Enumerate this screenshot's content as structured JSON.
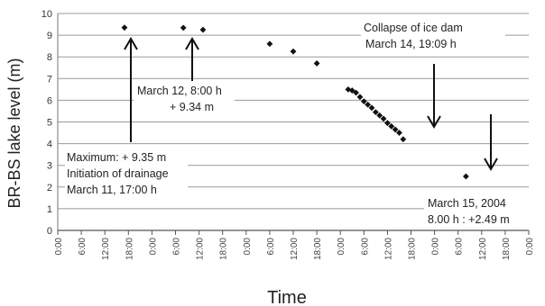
{
  "chart_data": {
    "type": "scatter",
    "title": "",
    "xlabel": "Time",
    "ylabel": "BR-BS lake level (m)",
    "ylim": [
      0,
      10
    ],
    "yticks": [
      "0",
      "1",
      "2",
      "3",
      "4",
      "5",
      "6",
      "7",
      "8",
      "9",
      "10"
    ],
    "xlim_hours": [
      0,
      120
    ],
    "xtick_labels": [
      "0:00",
      "6:00",
      "12:00",
      "18:00",
      "0:00",
      "6:00",
      "12:00",
      "18:00",
      "0:00",
      "6:00",
      "12:00",
      "18:00",
      "0:00",
      "6:00",
      "12:00",
      "18:00",
      "0:00",
      "6:00",
      "12:00",
      "18:00",
      "0:00"
    ],
    "grid": true,
    "series": [
      {
        "color": "#111111",
        "points": [
          {
            "x": "March 11, 17:00",
            "y": 9.35
          },
          {
            "x": "March 12, 8:00",
            "y": 9.34
          },
          {
            "x": "March 12, 13:00",
            "y": 9.25
          },
          {
            "x": "March 13, 6:00",
            "y": 8.6
          },
          {
            "x": "March 13, 12:00",
            "y": 8.25
          },
          {
            "x": "March 13, 18:00",
            "y": 7.7
          },
          {
            "x": "March 14, 2:00",
            "y": 6.5
          },
          {
            "x": "March 14, 3:00",
            "y": 6.45
          },
          {
            "x": "March 14, 4:00",
            "y": 6.35
          },
          {
            "x": "March 14, 5:00",
            "y": 6.15
          },
          {
            "x": "March 14, 6:00",
            "y": 5.95
          },
          {
            "x": "March 14, 7:00",
            "y": 5.8
          },
          {
            "x": "March 14, 8:00",
            "y": 5.65
          },
          {
            "x": "March 14, 9:00",
            "y": 5.45
          },
          {
            "x": "March 14, 10:00",
            "y": 5.3
          },
          {
            "x": "March 14, 11:00",
            "y": 5.15
          },
          {
            "x": "March 14, 12:00",
            "y": 4.95
          },
          {
            "x": "March 14, 13:00",
            "y": 4.8
          },
          {
            "x": "March 14, 14:00",
            "y": 4.65
          },
          {
            "x": "March 14, 15:00",
            "y": 4.5
          },
          {
            "x": "March 14, 16:00",
            "y": 4.2
          },
          {
            "x": "March 15, 8:00",
            "y": 2.49
          }
        ]
      }
    ],
    "point_hours": [
      17,
      32,
      37,
      54,
      60,
      66,
      74,
      75,
      76,
      77,
      78,
      79,
      80,
      81,
      82,
      83,
      84,
      85,
      86,
      87,
      88,
      104
    ],
    "annotations": [
      {
        "id": "max",
        "lines": [
          "Maximum: + 9.35 m",
          "Initiation of drainage",
          "March 11, 17:00 h"
        ]
      },
      {
        "id": "m12",
        "lines": [
          "March 12, 8:00 h",
          "+ 9.34 m"
        ]
      },
      {
        "id": "collapse",
        "lines": [
          "Collapse of ice dam",
          "March 14, 19:09 h"
        ]
      },
      {
        "id": "m15",
        "lines": [
          "March 15, 2004",
          "8.00 h  : +2.49 m"
        ]
      }
    ]
  }
}
